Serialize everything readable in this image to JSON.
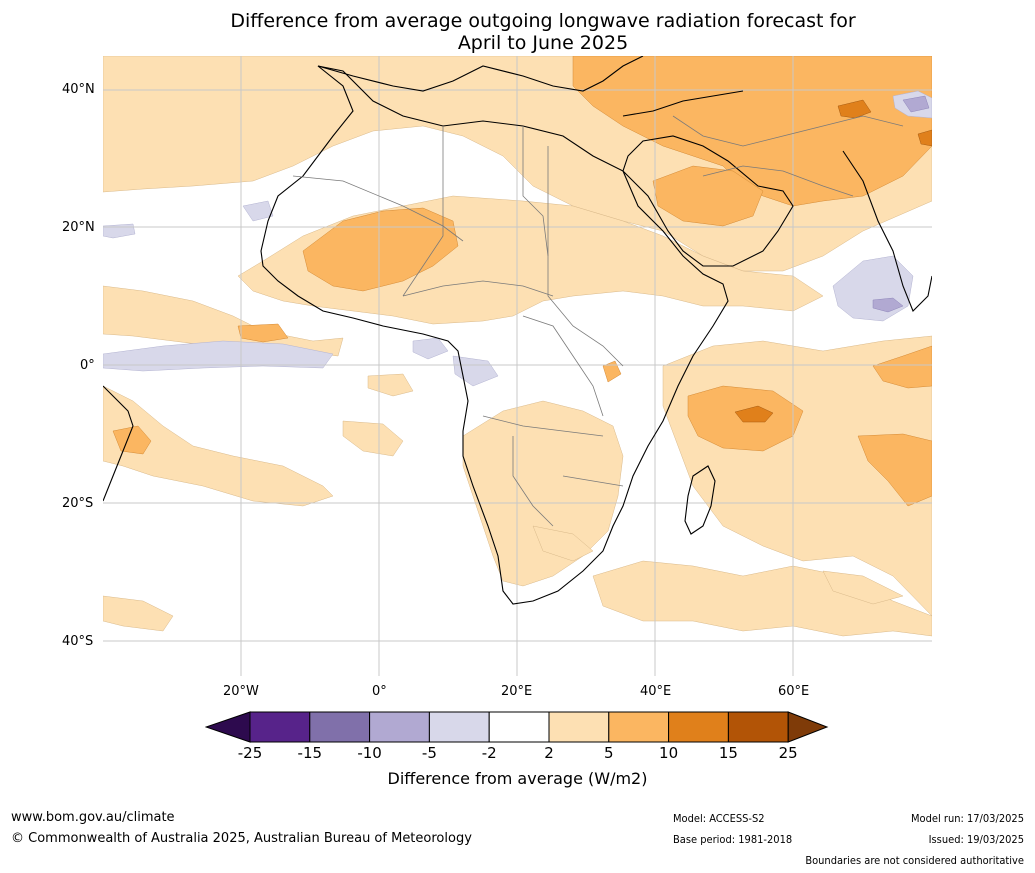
{
  "title_line1": "Difference from average outgoing longwave radiation forecast for",
  "title_line2": "April to June 2025",
  "lat_labels": [
    "40°N",
    "20°N",
    "0°",
    "20°S",
    "40°S"
  ],
  "lon_labels": [
    "20°W",
    "0°",
    "20°E",
    "40°E",
    "60°E"
  ],
  "colorbar": {
    "title": "Difference from average (W/m2)",
    "ticks": [
      "-25",
      "-15",
      "-10",
      "-5",
      "-2",
      "2",
      "5",
      "10",
      "15",
      "25"
    ],
    "colors": [
      "#2d0a4e",
      "#57238a",
      "#8070aa",
      "#b1a9d2",
      "#d8d8ea",
      "#ffffff",
      "#fde0b3",
      "#fbb661",
      "#e0801b",
      "#b25406",
      "#7f3b08"
    ]
  },
  "footer": {
    "website": "www.bom.gov.au/climate",
    "copyright": "© Commonwealth of Australia 2025, Australian Bureau of Meteorology",
    "model": "Model: ACCESS-S2",
    "base_period": "Base period: 1981-2018",
    "model_run": "Model run: 17/03/2025",
    "issued": "Issued: 19/03/2025",
    "disclaimer": "Boundaries are not considered authoritative"
  }
}
